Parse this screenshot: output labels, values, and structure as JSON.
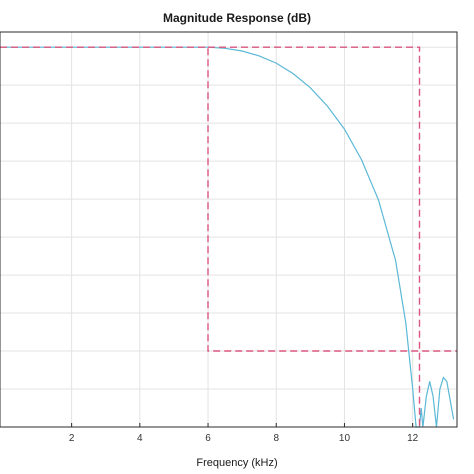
{
  "chart_data": {
    "type": "line",
    "title": "Magnitude Response (dB)",
    "xlabel": "Frequency (kHz)",
    "ylabel": "",
    "xlim": [
      -0.1,
      13.3
    ],
    "ylim": [
      -100,
      4
    ],
    "x_ticks": [
      2,
      4,
      6,
      8,
      10,
      12
    ],
    "y_gridlines": [
      0,
      -10,
      -20,
      -30,
      -40,
      -50,
      -60,
      -70,
      -80,
      -90
    ],
    "grid": true,
    "legend": "none",
    "series": [
      {
        "style": "solid",
        "color": "#5bb8d6",
        "x": [
          0,
          6,
          6.5,
          7,
          7.5,
          8,
          8.5,
          9,
          9.5,
          10,
          10.5,
          11,
          11.5,
          11.8,
          12.0,
          12.1,
          12.2,
          12.25,
          12.3,
          12.4,
          12.5,
          12.6,
          12.7,
          12.8,
          12.9,
          13.0,
          13.1,
          13.2
        ],
        "y": [
          0,
          0,
          -0.3,
          -1.0,
          -2.3,
          -4.2,
          -7.0,
          -10.7,
          -15.5,
          -21.6,
          -29.6,
          -40.3,
          -56.2,
          -72.6,
          -90.0,
          -100,
          -100,
          -95,
          -100,
          -92,
          -88,
          -92,
          -100,
          -90,
          -87,
          -88,
          -93,
          -98
        ]
      },
      {
        "style": "dashed",
        "color": "#d9567e",
        "x": [
          -0.1,
          6,
          6,
          12,
          12,
          13.3
        ],
        "y": [
          0,
          0,
          -80,
          -80,
          -80,
          -80
        ]
      },
      {
        "style": "dashed",
        "color": "#d9567e",
        "x": [
          6,
          12.2,
          12.2
        ],
        "y": [
          0,
          0,
          -100
        ]
      }
    ]
  }
}
